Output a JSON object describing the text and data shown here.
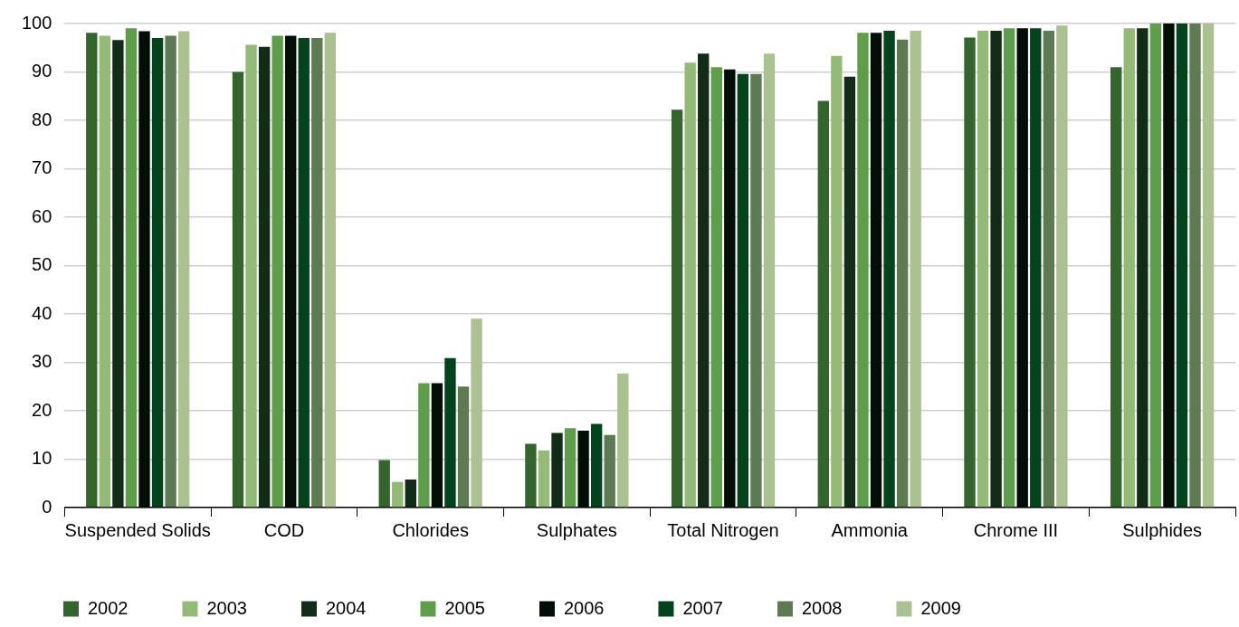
{
  "chart_data": {
    "type": "bar",
    "categories": [
      "Suspended Solids",
      "COD",
      "Chlorides",
      "Sulphates",
      "Total Nitrogen",
      "Ammonia",
      "Chrome III",
      "Sulphides"
    ],
    "series": [
      {
        "name": "2002",
        "color": "#35652e",
        "values": [
          98.1,
          90,
          9.8,
          13.2,
          82.2,
          84,
          97.1,
          91
        ]
      },
      {
        "name": "2003",
        "color": "#93ba76",
        "values": [
          97.5,
          95.6,
          5.3,
          11.8,
          91.9,
          93.3,
          98.5,
          99
        ]
      },
      {
        "name": "2004",
        "color": "#132c18",
        "values": [
          96.6,
          95.2,
          5.8,
          15.4,
          93.8,
          89,
          98.5,
          99
        ]
      },
      {
        "name": "2005",
        "color": "#5e9e4a",
        "values": [
          99,
          97.5,
          25.7,
          16.4,
          91,
          98.1,
          99,
          100
        ]
      },
      {
        "name": "2006",
        "color": "#020e06",
        "values": [
          98.4,
          97.5,
          25.7,
          15.9,
          90.5,
          98.1,
          99,
          100
        ]
      },
      {
        "name": "2007",
        "color": "#03441c",
        "values": [
          97,
          97,
          30.9,
          17.3,
          89.6,
          98.5,
          99,
          100
        ]
      },
      {
        "name": "2008",
        "color": "#5e7a52",
        "values": [
          97.5,
          97,
          25,
          15,
          89.6,
          96.7,
          98.5,
          100
        ]
      },
      {
        "name": "2009",
        "color": "#abc192",
        "values": [
          98.4,
          98.1,
          39,
          27.7,
          93.8,
          98.5,
          99.6,
          100
        ]
      }
    ],
    "ylim": [
      0,
      100
    ],
    "yticks": [
      0,
      10,
      20,
      30,
      40,
      50,
      60,
      70,
      80,
      90,
      100
    ],
    "grid": "y",
    "legend": "bottom"
  }
}
